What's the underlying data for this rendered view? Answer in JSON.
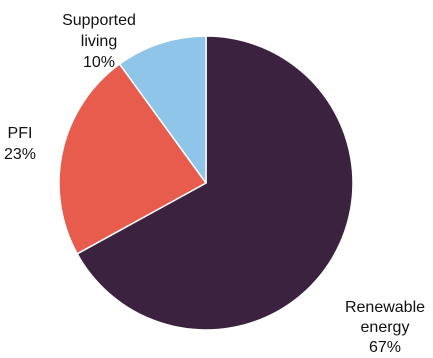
{
  "chart_data": {
    "type": "pie",
    "start_angle_deg": 0,
    "direction": "clockwise",
    "slices": [
      {
        "label_lines": [
          "Renewable",
          "energy"
        ],
        "percent_label": "67%",
        "value": 67,
        "color": "#3b2340"
      },
      {
        "label_lines": [
          "PFI"
        ],
        "percent_label": "23%",
        "value": 23,
        "color": "#e85c4e"
      },
      {
        "label_lines": [
          "Supported",
          "living"
        ],
        "percent_label": "10%",
        "value": 10,
        "color": "#8fc5e8"
      }
    ]
  }
}
